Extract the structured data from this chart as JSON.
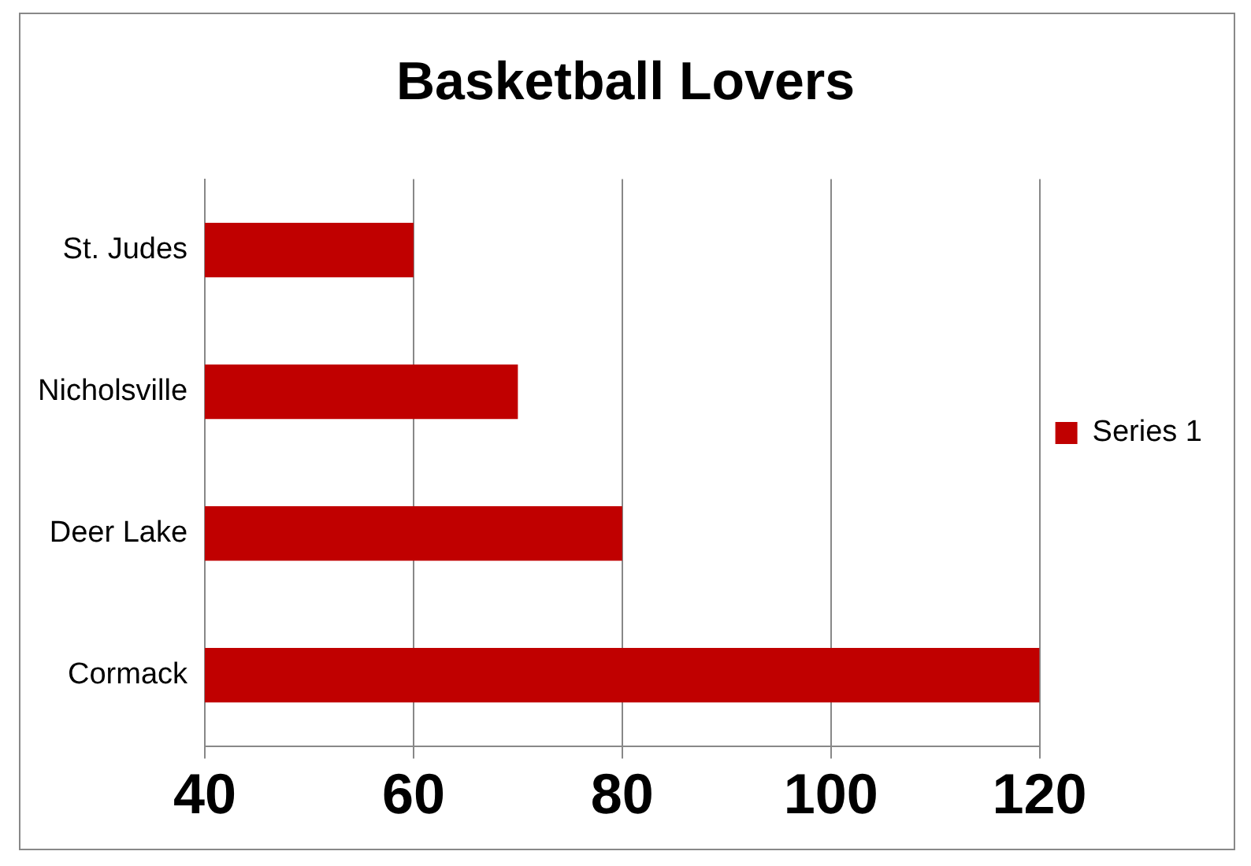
{
  "chart_data": {
    "type": "bar",
    "orientation": "horizontal",
    "title": "Basketball Lovers",
    "categories": [
      "St. Judes",
      "Nicholsville",
      "Deer Lake",
      "Cormack"
    ],
    "series": [
      {
        "name": "Series 1",
        "color": "#c00000",
        "values": [
          60,
          70,
          80,
          120
        ]
      }
    ],
    "xlim": [
      40,
      120
    ],
    "xticks": [
      40,
      60,
      80,
      100,
      120
    ],
    "grid": "x",
    "legend": "right"
  }
}
